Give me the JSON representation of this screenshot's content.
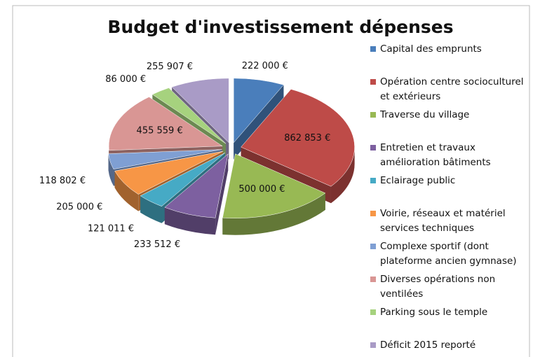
{
  "chart_data": {
    "type": "pie",
    "title": "Budget d'investissement dépenses",
    "categories": [
      "Capital des emprunts",
      "Opération centre socioculturel et extérieurs",
      "Traverse du village",
      "Entretien et travaux amélioration bâtiments",
      "Eclairage public",
      "Voirie, réseaux et matériel services techniques",
      "Complexe sportif (dont plateforme ancien gymnase)",
      "Diverses opérations non ventilées",
      "Parking sous le temple",
      "Déficit 2015 reporté"
    ],
    "values": [
      222000,
      862853,
      500000,
      233512,
      121011,
      205000,
      118802,
      455559,
      86000,
      255907
    ],
    "value_labels": [
      "222 000 €",
      "862 853 €",
      "500 000 €",
      "233 512 €",
      "121 011 €",
      "205 000 €",
      "118 802 €",
      "455 559 €",
      "86 000 €",
      "255 907 €"
    ],
    "colors": [
      "#4a7ebb",
      "#be4b48",
      "#98b954",
      "#7d60a0",
      "#46aac5",
      "#f79646",
      "#7f9fd3",
      "#d99694",
      "#a6d27e",
      "#a99bc6"
    ],
    "legend": "right"
  }
}
